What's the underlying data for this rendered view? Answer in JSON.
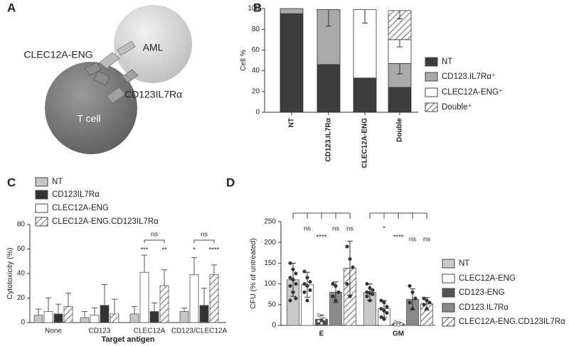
{
  "panels": [
    "A",
    "B",
    "C",
    "D"
  ],
  "diagram": {
    "aml": "AML",
    "t_cell": "T cell",
    "engager": "CLEC12A-ENG",
    "receptor": "CD123IL7Rα"
  },
  "chart_data": [
    {
      "type": "stacked_bar",
      "ylabel": "Cell %",
      "categories": [
        "NT",
        "CD123.IL7Rα",
        "CLEC12A-ENG",
        "Double"
      ],
      "ylim": [
        0,
        100
      ],
      "yticks": [
        0,
        20,
        40,
        60,
        80,
        100
      ],
      "series": [
        {
          "name": "NT",
          "color": "#3d3d3d",
          "values": [
            95,
            46,
            33,
            24
          ],
          "errors": [
            null,
            null,
            null,
            null
          ]
        },
        {
          "name": "CD123.IL7Rα⁺",
          "color": "#a9a9a9",
          "values": [
            5,
            53,
            0,
            23
          ],
          "errors": [
            null,
            16,
            null,
            10
          ]
        },
        {
          "name": "CLEC12A-ENG⁺",
          "color": "#ffffff",
          "values": [
            0,
            0,
            66,
            23
          ],
          "errors": [
            null,
            null,
            13,
            7
          ]
        },
        {
          "name": "Double⁺",
          "color": "#ffffff",
          "hatch": true,
          "values": [
            0,
            0,
            0,
            28
          ],
          "errors": [
            null,
            null,
            null,
            8
          ]
        }
      ]
    },
    {
      "type": "grouped_bar",
      "ylabel": "Cytotoxicity (%)",
      "xlabel": "Target antigen",
      "categories": [
        "None",
        "CD123",
        "CLEC12A",
        "CD123/CLEC12A"
      ],
      "ylim": [
        0,
        80
      ],
      "yticks": [
        0,
        20,
        40,
        60,
        80
      ],
      "series": [
        {
          "name": "NT",
          "color": "#c6c6c6",
          "values": [
            6,
            4,
            7,
            9
          ],
          "errors": [
            5,
            5,
            6,
            3
          ]
        },
        {
          "name": "CLEC12A-ENG",
          "color": "#ffffff",
          "values": [
            9,
            6,
            41,
            39
          ],
          "errors": [
            11,
            6,
            14,
            14
          ]
        },
        {
          "name": "CD123IL7Rα",
          "color": "#333333",
          "values": [
            7,
            14,
            9,
            14
          ],
          "errors": [
            8,
            17,
            7,
            14
          ]
        },
        {
          "name": "CLEC12A-ENG.CD123IL7Rα",
          "color": "#ffffff",
          "hatch": true,
          "values": [
            13,
            7,
            30,
            39
          ],
          "errors": [
            11,
            12,
            13,
            8
          ]
        }
      ],
      "annotations": [
        "***",
        "**",
        "ns",
        "*",
        "****",
        "ns"
      ]
    },
    {
      "type": "dot_bar",
      "ylabel": "CFU (% of untreated)",
      "categories": [
        "E",
        "GM"
      ],
      "ylim": [
        0,
        250
      ],
      "yticks": [
        0,
        50,
        100,
        150,
        200,
        250
      ],
      "series": [
        {
          "name": "NT",
          "color": "#c9c9c9",
          "values": [
            110,
            80
          ],
          "errors": [
            40,
            20
          ],
          "points": [
            [
              150,
              135,
              125,
              115,
              110,
              100,
              95,
              80,
              65,
              60
            ],
            [
              100,
              90,
              85,
              80,
              78,
              75,
              70,
              60
            ]
          ]
        },
        {
          "name": "CLEC12A-ENG",
          "color": "#ffffff",
          "values": [
            98,
            40
          ],
          "errors": [
            30,
            20
          ],
          "points": [
            [
              130,
              115,
              105,
              100,
              95,
              85,
              80,
              60
            ],
            [
              60,
              55,
              45,
              40,
              35,
              30,
              20,
              15
            ]
          ]
        },
        {
          "name": "CD123-ENG",
          "color": "#555555",
          "values": [
            15,
            4
          ],
          "errors": [
            10,
            4
          ],
          "points": [
            [
              25,
              20,
              15,
              10,
              5
            ],
            [
              8,
              5,
              3,
              2,
              1
            ]
          ]
        },
        {
          "name": "CD123.IL7Rα",
          "color": "#8a8a8a",
          "values": [
            80,
            63
          ],
          "errors": [
            25,
            25
          ],
          "points": [
            [
              100,
              95,
              80,
              70,
              60
            ],
            [
              95,
              80,
              65,
              55,
              40
            ]
          ]
        },
        {
          "name": "CLEC12A-ENG.CD123IL7Rα",
          "color": "#ffffff",
          "hatch": true,
          "values": [
            138,
            52
          ],
          "errors": [
            65,
            15
          ],
          "points": [
            [
              190,
              160,
              140,
              100,
              70
            ],
            [
              65,
              60,
              55,
              50,
              40
            ]
          ]
        }
      ],
      "annotations": [
        "ns",
        "****",
        "ns",
        "ns",
        "*",
        "****",
        "ns",
        "ns"
      ]
    }
  ]
}
